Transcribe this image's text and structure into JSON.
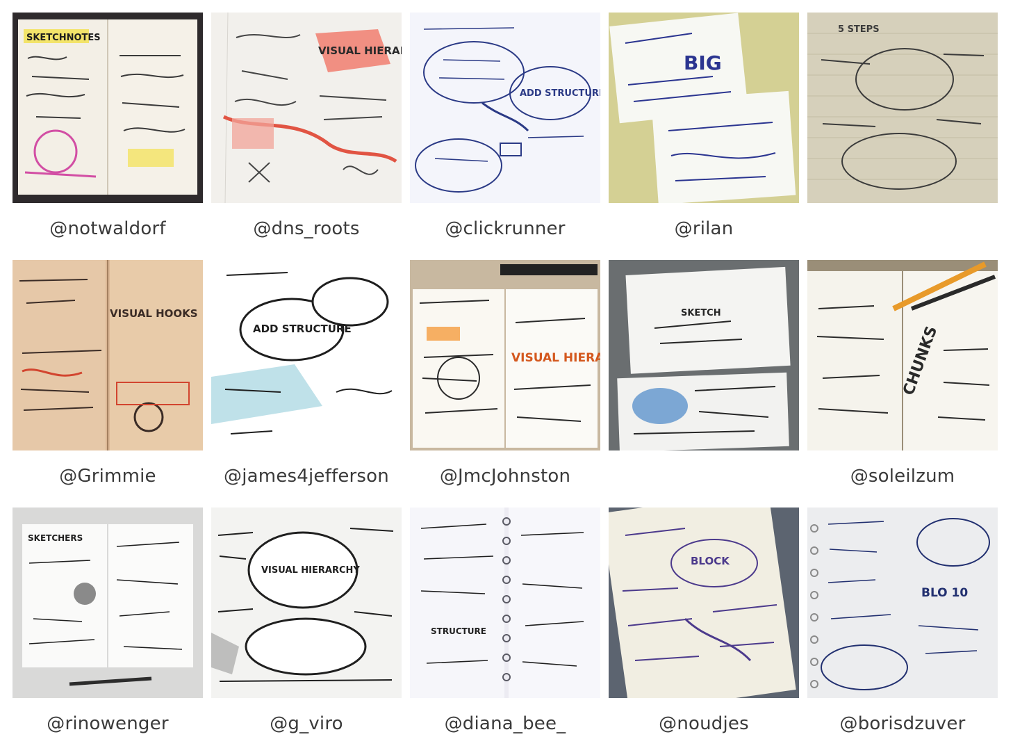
{
  "gallery": {
    "items": [
      {
        "handle": "@notwaldorf",
        "image_label": "SKETCHNOTES",
        "theme": "yellow"
      },
      {
        "handle": "@dns_roots",
        "image_label": "VISUAL HIERARCHY",
        "theme": "red"
      },
      {
        "handle": "@clickrunner",
        "image_label": "ADD STRUCTURE",
        "theme": "blue"
      },
      {
        "handle": "@rilan",
        "image_label": "BIG",
        "theme": "cards"
      },
      {
        "handle": "",
        "image_label": "5 STEPS",
        "theme": "beige"
      },
      {
        "handle": "@Grimmie",
        "image_label": "VISUAL HOOKS",
        "theme": "kraft"
      },
      {
        "handle": "@james4jefferson",
        "image_label": "ADD STRUCTURE",
        "theme": "bw"
      },
      {
        "handle": "@JmcJohnston",
        "image_label": "VISUAL HIERARCHY",
        "theme": "orange"
      },
      {
        "handle": "",
        "image_label": "SKETCH",
        "theme": "gray"
      },
      {
        "handle": "@soleilzum",
        "image_label": "CHUNKS",
        "theme": "grid"
      },
      {
        "handle": "@rinowenger",
        "image_label": "SKETCHERS",
        "theme": "small"
      },
      {
        "handle": "@g_viro",
        "image_label": "VISUAL HIERARCHY",
        "theme": "dense"
      },
      {
        "handle": "@diana_bee_",
        "image_label": "STRUCTURE",
        "theme": "spiral"
      },
      {
        "handle": "@noudjes",
        "image_label": "BLOCK",
        "theme": "purple"
      },
      {
        "handle": "@borisdzuver",
        "image_label": "BLO 10",
        "theme": "dotted"
      }
    ]
  }
}
